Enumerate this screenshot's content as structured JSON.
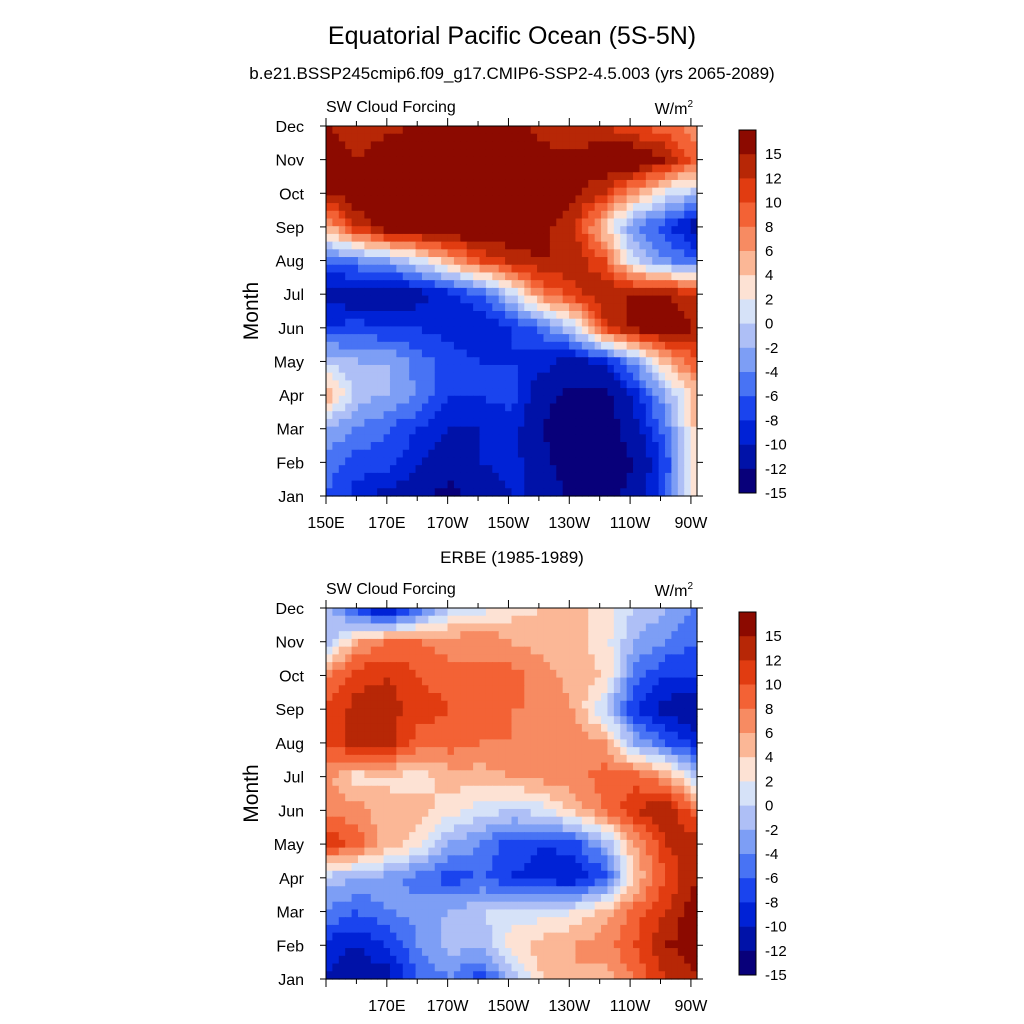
{
  "title": "Equatorial Pacific Ocean (5S-5N)",
  "subtitle": "b.e21.BSSP245cmip6.f09_g17.CMIP6-SSP2-4.5.003 (yrs 2065-2089)",
  "panel2_title": "ERBE (1985-1989)",
  "chart_data": [
    {
      "type": "heatmap",
      "title": "b.e21.BSSP245cmip6.f09_g17.CMIP6-SSP2-4.5.003 (yrs 2065-2089)",
      "left_string": "SW Cloud Forcing",
      "units_main": "W/m",
      "units_sup": "2",
      "ylabel": "Month",
      "xlabel": "",
      "x_tick_labels": [
        "150E",
        "170E",
        "170W",
        "150W",
        "130W",
        "110W",
        "90W"
      ],
      "y_tick_labels": [
        "Jan",
        "Feb",
        "Mar",
        "Apr",
        "May",
        "Jun",
        "Jul",
        "Aug",
        "Sep",
        "Oct",
        "Nov",
        "Dec"
      ],
      "x_range_degE": [
        150,
        272
      ],
      "colorbar_labels": [
        "15",
        "12",
        "10",
        "8",
        "6",
        "4",
        "2",
        "0",
        "-2",
        "-4",
        "-6",
        "-8",
        "-10",
        "-12",
        "-15"
      ],
      "columns": [
        "150E",
        "160E",
        "170E",
        "180",
        "170W",
        "160W",
        "150W",
        "140W",
        "130W",
        "120W",
        "110W",
        "100W",
        "90W"
      ],
      "z": [
        [
          -8,
          -11,
          -13,
          -14,
          -16,
          -14,
          -12,
          -12,
          -16,
          -16,
          -14,
          -8,
          2
        ],
        [
          -7,
          -9,
          -9,
          -12,
          -14,
          -12,
          -11,
          -14,
          -17,
          -17,
          -15,
          -9,
          2
        ],
        [
          -4,
          -6,
          -8,
          -10,
          -12,
          -12,
          -11,
          -15,
          -17,
          -17,
          -13,
          -7,
          3
        ],
        [
          4,
          -3,
          -4,
          -6,
          -10,
          -10,
          -9,
          -14,
          -16,
          -16,
          -11,
          -4,
          3
        ],
        [
          -2,
          -4,
          -4,
          -7,
          -9,
          -10,
          -10,
          -11,
          -13,
          -11,
          -5,
          3,
          8
        ],
        [
          -10,
          -9,
          -10,
          -10,
          -11,
          -12,
          -10,
          -7,
          -2,
          9,
          13,
          14,
          12
        ],
        [
          -13,
          -14,
          -15,
          -13,
          -11,
          -8,
          -2,
          6,
          9,
          12,
          12,
          12,
          10
        ],
        [
          -8,
          -6,
          -4,
          -1,
          4,
          8,
          11,
          12,
          12,
          8,
          -2,
          -6,
          -8
        ],
        [
          3,
          10,
          14,
          15,
          15,
          15,
          14,
          13,
          10,
          2,
          -6,
          -9,
          -14
        ],
        [
          12,
          14,
          16,
          16,
          16,
          16,
          15,
          14,
          13,
          10,
          4,
          -1,
          -3
        ],
        [
          14,
          12,
          15,
          16,
          16,
          16,
          15,
          13,
          13,
          14,
          15,
          12,
          7
        ],
        [
          12,
          10,
          11,
          12,
          12,
          12,
          13,
          11,
          10,
          10,
          8,
          7,
          4
        ]
      ]
    },
    {
      "type": "heatmap",
      "title": "ERBE (1985-1989)",
      "left_string": "SW Cloud Forcing",
      "units_main": "W/m",
      "units_sup": "2",
      "ylabel": "Month",
      "xlabel": "",
      "x_tick_labels": [
        "170E",
        "170W",
        "150W",
        "130W",
        "110W",
        "90W"
      ],
      "y_tick_labels": [
        "Jan",
        "Feb",
        "Mar",
        "Apr",
        "May",
        "Jun",
        "Jul",
        "Aug",
        "Sep",
        "Oct",
        "Nov",
        "Dec"
      ],
      "x_range_degE": [
        150,
        272
      ],
      "colorbar_labels": [
        "15",
        "12",
        "10",
        "8",
        "6",
        "4",
        "2",
        "0",
        "-2",
        "-4",
        "-6",
        "-8",
        "-10",
        "-12",
        "-15"
      ],
      "columns": [
        "150E",
        "160E",
        "170E",
        "180",
        "170W",
        "160W",
        "150W",
        "140W",
        "130W",
        "120W",
        "110W",
        "100W",
        "90W"
      ],
      "z": [
        [
          -12,
          -14,
          -13,
          -8,
          -6,
          -9,
          -4,
          2,
          4,
          3,
          6,
          10,
          12
        ],
        [
          -11,
          -12,
          -10,
          -6,
          -3,
          -4,
          1,
          3,
          4,
          5,
          8,
          12,
          13
        ],
        [
          -6,
          -8,
          -6,
          -5,
          -4,
          -2,
          -1,
          -1,
          0,
          3,
          7,
          10,
          14
        ],
        [
          -3,
          -4,
          -5,
          -7,
          -9,
          -8,
          -10,
          -11,
          -12,
          -9,
          2,
          8,
          12
        ],
        [
          10,
          7,
          3,
          1,
          -4,
          -6,
          -9,
          -10,
          -9,
          -4,
          4,
          10,
          12
        ],
        [
          5,
          5,
          2,
          3,
          1,
          -1,
          -2,
          -1,
          3,
          6,
          10,
          12,
          6
        ],
        [
          5,
          1,
          2,
          1,
          3,
          3,
          4,
          5,
          5,
          7,
          7,
          4,
          -2
        ],
        [
          8,
          11,
          11,
          7,
          7,
          6,
          6,
          5,
          6,
          4,
          -4,
          -8,
          -11
        ],
        [
          8,
          11,
          11,
          9,
          8,
          6,
          6,
          6,
          4,
          -2,
          -10,
          -13,
          -14
        ],
        [
          6,
          9,
          10,
          8,
          7,
          6,
          7,
          5,
          3,
          2,
          -7,
          -10,
          -10
        ],
        [
          -4,
          4,
          6,
          6,
          5,
          6,
          4,
          3,
          3,
          1,
          -4,
          -6,
          -8
        ],
        [
          -2,
          -10,
          -14,
          -8,
          -2,
          -1,
          1,
          2,
          3,
          1,
          -2,
          -4,
          -6
        ]
      ]
    }
  ],
  "colors": {
    "palette": [
      "#08007a",
      "#0012a8",
      "#0022d6",
      "#1a44ee",
      "#4873f4",
      "#7d9ef5",
      "#aebff6",
      "#d6e2f8",
      "#fde2d4",
      "#fbb796",
      "#f78b62",
      "#f36235",
      "#e13c11",
      "#b72706",
      "#8c0a00"
    ],
    "levels": [
      -15,
      -12,
      -10,
      -8,
      -6,
      -4,
      -2,
      0,
      2,
      4,
      6,
      8,
      10,
      12,
      15
    ]
  }
}
